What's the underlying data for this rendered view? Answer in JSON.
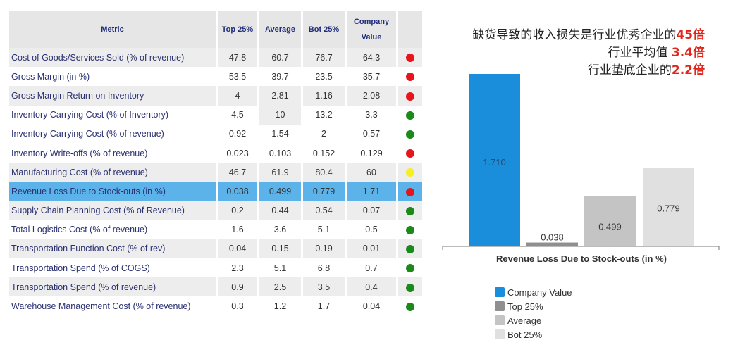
{
  "table": {
    "headers": [
      "Metric",
      "Top 25%",
      "Average",
      "Bot 25%",
      "Company Value",
      ""
    ],
    "status_colors": {
      "red": "#e8141a",
      "green": "#1a8a1a",
      "yellow": "#f5f01e"
    },
    "rows": [
      {
        "metric": "Cost of Goods/Services Sold (% of revenue)",
        "top25": "47.8",
        "average": "60.7",
        "bot25": "76.7",
        "company": "64.3",
        "status": "red"
      },
      {
        "metric": "Gross Margin (in %)",
        "top25": "53.5",
        "average": "39.7",
        "bot25": "23.5",
        "company": "35.7",
        "status": "red"
      },
      {
        "metric": "Gross Margin Return on Inventory",
        "top25": "4",
        "average": "2.81",
        "bot25": "1.16",
        "company": "2.08",
        "status": "red"
      },
      {
        "metric": "Inventory Carrying Cost (% of Inventory)",
        "top25": "4.5",
        "average": "10",
        "bot25": "13.2",
        "company": "3.3",
        "status": "green"
      },
      {
        "metric": "Inventory Carrying Cost (% of revenue)",
        "top25": "0.92",
        "average": "1.54",
        "bot25": "2",
        "company": "0.57",
        "status": "green"
      },
      {
        "metric": "Inventory Write-offs (% of revenue)",
        "top25": "0.023",
        "average": "0.103",
        "bot25": "0.152",
        "company": "0.129",
        "status": "red"
      },
      {
        "metric": "Manufacturing Cost (% of revenue)",
        "top25": "46.7",
        "average": "61.9",
        "bot25": "80.4",
        "company": "60",
        "status": "yellow"
      },
      {
        "metric": "Revenue Loss Due to Stock-outs (in %)",
        "top25": "0.038",
        "average": "0.499",
        "bot25": "0.779",
        "company": "1.71",
        "status": "red",
        "highlighted": true
      },
      {
        "metric": "Supply Chain Planning Cost (% of Revenue)",
        "top25": "0.2",
        "average": "0.44",
        "bot25": "0.54",
        "company": "0.07",
        "status": "green"
      },
      {
        "metric": "Total Logistics Cost (% of revenue)",
        "top25": "1.6",
        "average": "3.6",
        "bot25": "5.1",
        "company": "0.5",
        "status": "green"
      },
      {
        "metric": "Transportation Function Cost (% of rev)",
        "top25": "0.04",
        "average": "0.15",
        "bot25": "0.19",
        "company": "0.01",
        "status": "green"
      },
      {
        "metric": "Transportation Spend (% of COGS)",
        "top25": "2.3",
        "average": "5.1",
        "bot25": "6.8",
        "company": "0.7",
        "status": "green"
      },
      {
        "metric": "Transportation Spend (% of revenue)",
        "top25": "0.9",
        "average": "2.5",
        "bot25": "3.5",
        "company": "0.4",
        "status": "green"
      },
      {
        "metric": "Warehouse Management Cost (% of revenue)",
        "top25": "0.3",
        "average": "1.2",
        "bot25": "1.7",
        "company": "0.04",
        "status": "green"
      }
    ]
  },
  "headline": {
    "line1": "缺货导致的收入损失是行业优秀企业的",
    "line1_value": "45倍",
    "line2": "行业平均值 ",
    "line2_value": "3.4倍",
    "line3": "行业垫底企业的",
    "line3_value": "2.2倍"
  },
  "chart_data": {
    "type": "bar",
    "xlabel": "Revenue Loss Due to Stock-outs (in %)",
    "categories": [
      "Company Value",
      "Top 25%",
      "Average",
      "Bot 25%"
    ],
    "values": [
      1.71,
      0.038,
      0.499,
      0.779
    ],
    "data_labels": [
      "1.710",
      "0.038",
      "0.499",
      "0.779"
    ],
    "colors": [
      "#1a8ddb",
      "#8f8f8f",
      "#c4c4c4",
      "#e0e0e0"
    ],
    "ylim": [
      0,
      1.71
    ],
    "grid": false,
    "legend": "bottom"
  }
}
